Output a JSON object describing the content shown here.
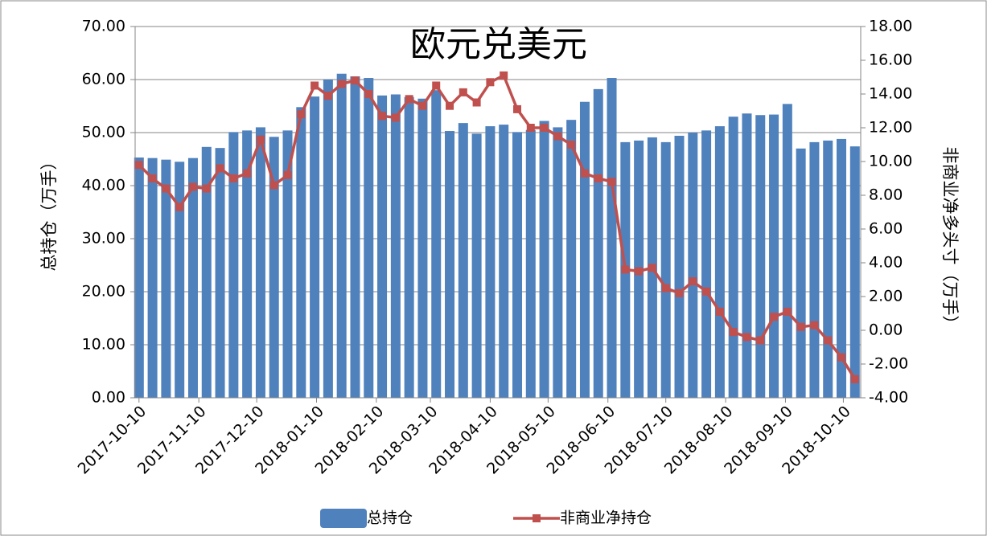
{
  "chart_data": {
    "type": "bar_line_dual",
    "title": "欧元兑美元",
    "y_label": "总持仓（万手）",
    "y2_label": "非商业净多头寸（万手）",
    "x": [
      "2017-10-10",
      "2017-10-17",
      "2017-10-24",
      "2017-10-31",
      "2017-11-07",
      "2017-11-14",
      "2017-11-21",
      "2017-11-28",
      "2017-12-05",
      "2017-12-12",
      "2017-12-19",
      "2017-12-26",
      "2018-01-02",
      "2018-01-09",
      "2018-01-16",
      "2018-01-23",
      "2018-01-30",
      "2018-02-06",
      "2018-02-13",
      "2018-02-20",
      "2018-02-27",
      "2018-03-06",
      "2018-03-13",
      "2018-03-20",
      "2018-03-27",
      "2018-04-03",
      "2018-04-10",
      "2018-04-17",
      "2018-04-24",
      "2018-05-01",
      "2018-05-08",
      "2018-05-15",
      "2018-05-22",
      "2018-05-29",
      "2018-06-05",
      "2018-06-12",
      "2018-06-19",
      "2018-06-26",
      "2018-07-03",
      "2018-07-10",
      "2018-07-17",
      "2018-07-24",
      "2018-07-31",
      "2018-08-07",
      "2018-08-14",
      "2018-08-21",
      "2018-08-28",
      "2018-09-04",
      "2018-09-11",
      "2018-09-18",
      "2018-09-25",
      "2018-10-02",
      "2018-10-09",
      "2018-10-16"
    ],
    "xlim": [
      "2017-10-08",
      "2018-10-19"
    ],
    "xticks": [
      "2017-10-10",
      "2017-11-10",
      "2017-12-10",
      "2018-01-10",
      "2018-02-10",
      "2018-03-10",
      "2018-04-10",
      "2018-05-10",
      "2018-06-10",
      "2018-07-10",
      "2018-08-10",
      "2018-09-10",
      "2018-10-10"
    ],
    "series": [
      {
        "name": "总持仓",
        "color": "#4f81bd",
        "kind": "bar",
        "axis": "y",
        "values": [
          45.3,
          45.2,
          44.9,
          44.5,
          45.2,
          47.3,
          47.1,
          50.1,
          50.4,
          51.0,
          49.2,
          50.4,
          54.8,
          56.8,
          60.0,
          61.1,
          60.6,
          60.3,
          57.0,
          57.2,
          56.7,
          56.4,
          58.0,
          50.3,
          51.8,
          49.8,
          51.2,
          51.5,
          50.1,
          50.5,
          52.2,
          51.0,
          52.4,
          55.8,
          58.2,
          60.3,
          48.2,
          48.5,
          49.1,
          48.2,
          49.4,
          50.0,
          50.4,
          51.2,
          53.0,
          53.6,
          53.3,
          53.4,
          55.4,
          47.0,
          48.2,
          48.5,
          48.8,
          47.4
        ]
      },
      {
        "name": "非商业净持仓",
        "color": "#c0504d",
        "kind": "line",
        "axis": "y2",
        "values": [
          9.8,
          9.0,
          8.4,
          7.3,
          8.5,
          8.4,
          9.6,
          9.0,
          9.3,
          11.3,
          8.6,
          9.2,
          12.8,
          14.5,
          13.9,
          14.6,
          14.8,
          14.0,
          12.7,
          12.6,
          13.7,
          13.3,
          14.5,
          13.3,
          14.1,
          13.5,
          14.7,
          15.1,
          13.1,
          12.0,
          12.0,
          11.5,
          11.0,
          9.3,
          9.0,
          8.8,
          3.6,
          3.5,
          3.7,
          2.5,
          2.2,
          2.9,
          2.3,
          1.1,
          -0.1,
          -0.4,
          -0.6,
          0.8,
          1.1,
          0.2,
          0.3,
          -0.6,
          -1.6,
          -2.9
        ]
      }
    ],
    "ylim": [
      0,
      70
    ],
    "yticks": [
      {
        "value": 0,
        "label": "0.00"
      },
      {
        "value": 10,
        "label": "10.00"
      },
      {
        "value": 20,
        "label": "20.00"
      },
      {
        "value": 30,
        "label": "30.00"
      },
      {
        "value": 40,
        "label": "40.00"
      },
      {
        "value": 50,
        "label": "50.00"
      },
      {
        "value": 60,
        "label": "60.00"
      },
      {
        "value": 70,
        "label": "70.00"
      }
    ],
    "y2lim": [
      -4,
      18
    ],
    "y2ticks": [
      {
        "value": -4,
        "label": "-4.00"
      },
      {
        "value": -2,
        "label": "-2.00"
      },
      {
        "value": 0,
        "label": "0.00"
      },
      {
        "value": 2,
        "label": "2.00"
      },
      {
        "value": 4,
        "label": "4.00"
      },
      {
        "value": 6,
        "label": "6.00"
      },
      {
        "value": 8,
        "label": "8.00"
      },
      {
        "value": 10,
        "label": "10.00"
      },
      {
        "value": 12,
        "label": "12.00"
      },
      {
        "value": 14,
        "label": "14.00"
      },
      {
        "value": 16,
        "label": "16.00"
      },
      {
        "value": 18,
        "label": "18.00"
      }
    ],
    "grid": true,
    "legend": "bottom"
  }
}
